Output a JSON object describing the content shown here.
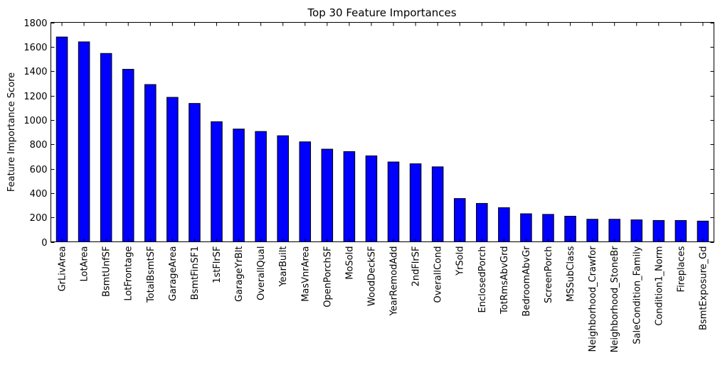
{
  "chart_data": {
    "type": "bar",
    "title": "Top 30 Feature Importances",
    "xlabel": "",
    "ylabel": "Feature Importance Score",
    "ylim": [
      0,
      1800
    ],
    "yticks": [
      0,
      200,
      400,
      600,
      800,
      1000,
      1200,
      1400,
      1600,
      1800
    ],
    "grid": false,
    "legend": "none",
    "bar_color": "#0000ff",
    "edge_color": "#000000",
    "categories": [
      "GrLivArea",
      "LotArea",
      "BsmtUnfSF",
      "LotFrontage",
      "TotalBsmtSF",
      "GarageArea",
      "BsmtFinSF1",
      "1stFlrSF",
      "GarageYrBlt",
      "OverallQual",
      "YearBuilt",
      "MasVnrArea",
      "OpenPorchSF",
      "MoSold",
      "WoodDeckSF",
      "YearRemodAdd",
      "2ndFlrSF",
      "OverallCond",
      "YrSold",
      "EnclosedPorch",
      "TotRmsAbvGrd",
      "BedroomAbvGr",
      "ScreenPorch",
      "MSSubClass",
      "Neighborhood_Crawfor",
      "Neighborhood_StoneBr",
      "SaleCondition_Family",
      "Condition1_Norm",
      "Fireplaces",
      "BsmtExposure_Gd"
    ],
    "values": [
      1680,
      1640,
      1545,
      1415,
      1290,
      1185,
      1135,
      985,
      925,
      905,
      870,
      820,
      760,
      740,
      705,
      655,
      640,
      615,
      355,
      315,
      280,
      230,
      225,
      210,
      185,
      185,
      180,
      175,
      175,
      170
    ]
  }
}
